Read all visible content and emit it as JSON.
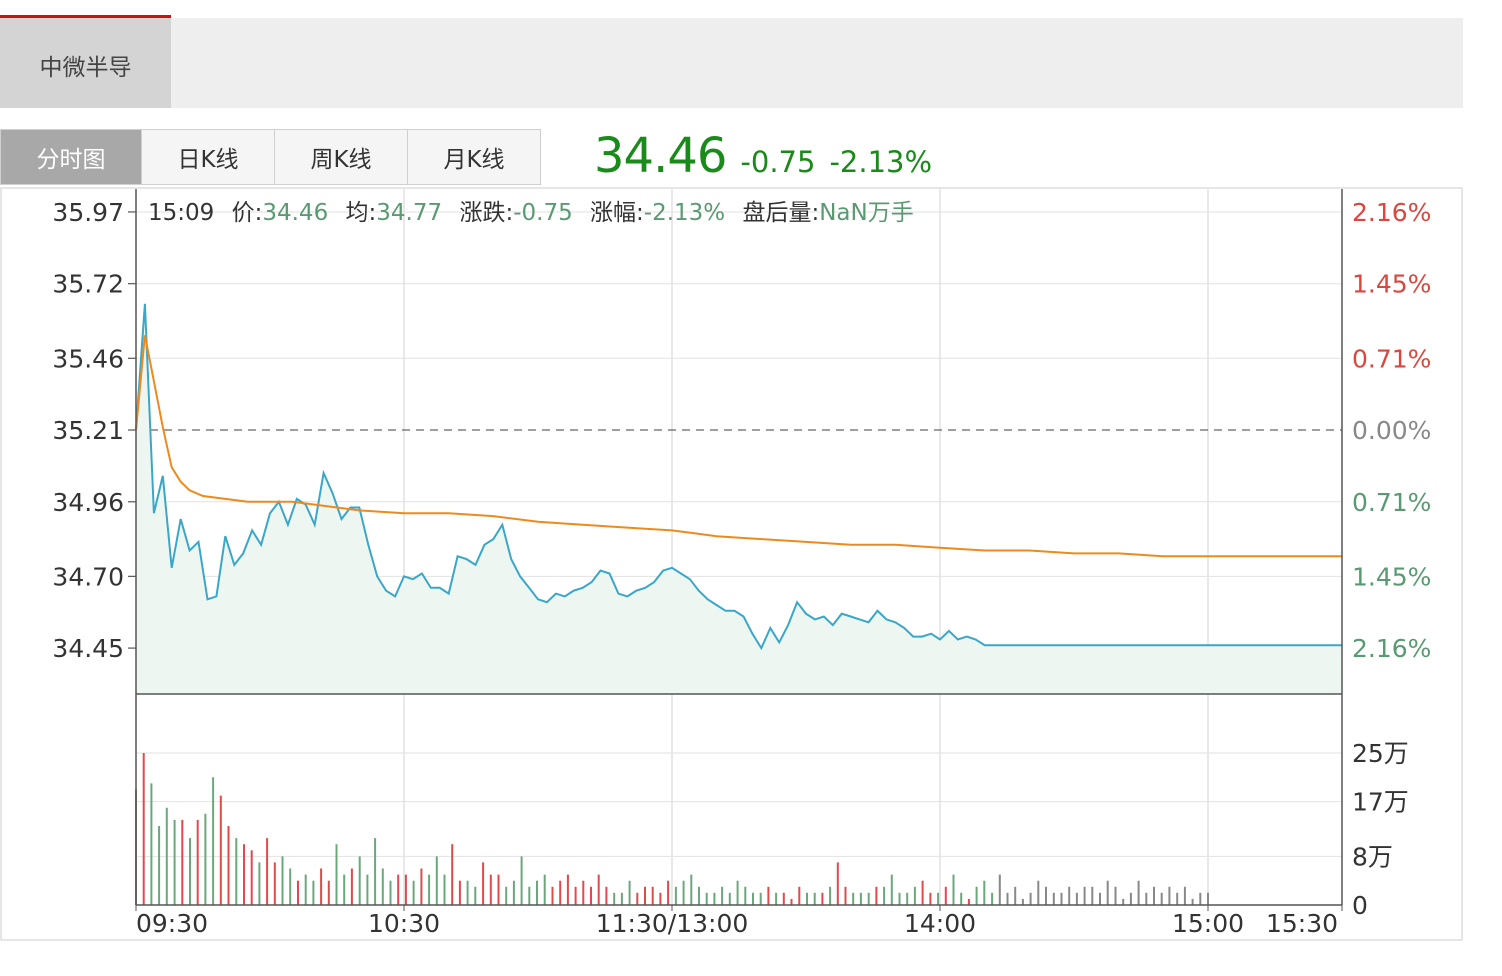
{
  "stock_name": "中微半导",
  "tabs": [
    "分时图",
    "日K线",
    "周K线",
    "月K线"
  ],
  "quote": {
    "price": "34.46",
    "change": "-0.75",
    "change_pct": "-2.13%"
  },
  "info_bar": {
    "time": "15:09",
    "price_label": "价:",
    "price": "34.46",
    "avg_label": "均:",
    "avg": "34.77",
    "change_label": "涨跌:",
    "change": "-0.75",
    "pct_label": "涨幅:",
    "pct": "-2.13%",
    "after_label": "盘后量:",
    "after": "NaN万手"
  },
  "colors": {
    "price_line": "#3aa7c8",
    "avg_line": "#ee8a1c",
    "area_fill": "#eef6f2",
    "up": "#e04a4a",
    "down": "#6aa87c",
    "neutral": "#888888",
    "quote_green": "#1a8a1a"
  },
  "chart_data": {
    "type": "line",
    "reference_price": 35.21,
    "price_ticks": [
      "35.97",
      "35.72",
      "35.46",
      "35.21",
      "34.96",
      "34.70",
      "34.45"
    ],
    "pct_ticks": [
      "2.16%",
      "1.45%",
      "0.71%",
      "0.00%",
      "0.71%",
      "1.45%",
      "2.16%"
    ],
    "ylim": [
      34.29,
      36.05
    ],
    "time_labels": [
      "09:30",
      "10:30",
      "11:30/13:00",
      "14:00",
      "15:00",
      "15:30"
    ],
    "volume_ticks": [
      "25万",
      "17万",
      "8万",
      "0"
    ],
    "volume_ylim": [
      0,
      25
    ],
    "series": [
      {
        "name": "价",
        "x": [
          0,
          2,
          4,
          6,
          8,
          10,
          12,
          14,
          16,
          18,
          20,
          22,
          24,
          26,
          28,
          30,
          32,
          34,
          36,
          38,
          40,
          42,
          44,
          46,
          48,
          50,
          52,
          54,
          56,
          58,
          60,
          62,
          64,
          66,
          68,
          70,
          72,
          74,
          76,
          78,
          80,
          82,
          84,
          86,
          88,
          90,
          92,
          94,
          96,
          98,
          100,
          102,
          104,
          106,
          108,
          110,
          112,
          114,
          116,
          118,
          120,
          122,
          124,
          126,
          128,
          130,
          132,
          134,
          136,
          138,
          140,
          142,
          144,
          146,
          148,
          150,
          152,
          154,
          156,
          158,
          160,
          162,
          164,
          166,
          168,
          170,
          172,
          174,
          176,
          178,
          180,
          182,
          184,
          186,
          188,
          190,
          192,
          194,
          196,
          198,
          200,
          202,
          204,
          206,
          208,
          210,
          212,
          214,
          216,
          218,
          220,
          222,
          224,
          226,
          228,
          230,
          232,
          234,
          236,
          238,
          240,
          242,
          244,
          246,
          248,
          250,
          252,
          254,
          256,
          258,
          260,
          262,
          264,
          266,
          268,
          270
        ],
        "values": [
          35.21,
          35.65,
          34.92,
          35.05,
          34.73,
          34.9,
          34.79,
          34.82,
          34.62,
          34.63,
          34.84,
          34.74,
          34.78,
          34.86,
          34.81,
          34.92,
          34.96,
          34.88,
          34.97,
          34.95,
          34.88,
          35.06,
          34.99,
          34.9,
          34.94,
          34.94,
          34.81,
          34.7,
          34.65,
          34.63,
          34.7,
          34.69,
          34.71,
          34.66,
          34.66,
          34.64,
          34.77,
          34.76,
          34.74,
          34.81,
          34.83,
          34.88,
          34.76,
          34.7,
          34.66,
          34.62,
          34.61,
          34.64,
          34.63,
          34.65,
          34.66,
          34.68,
          34.72,
          34.71,
          34.64,
          34.63,
          34.65,
          34.66,
          34.68,
          34.72,
          34.73,
          34.71,
          34.69,
          34.65,
          34.62,
          34.6,
          34.58,
          34.58,
          34.56,
          34.5,
          34.45,
          34.52,
          34.47,
          34.53,
          34.61,
          34.57,
          34.55,
          34.56,
          34.53,
          34.57,
          34.56,
          34.55,
          34.54,
          34.58,
          34.55,
          34.54,
          34.52,
          34.49,
          34.49,
          34.5,
          34.48,
          34.51,
          34.48,
          34.49,
          34.48,
          34.46,
          34.46,
          34.46,
          34.46,
          34.46,
          34.46,
          34.46,
          34.46,
          34.46,
          34.46,
          34.46,
          34.46,
          34.46,
          34.46,
          34.46,
          34.46,
          34.46,
          34.46,
          34.46,
          34.46,
          34.46,
          34.46,
          34.46,
          34.46,
          34.46,
          34.46,
          34.46,
          34.46,
          34.46,
          34.46,
          34.46,
          34.46,
          34.46,
          34.46,
          34.46,
          34.46,
          34.46,
          34.46,
          34.46,
          34.46,
          34.46
        ]
      },
      {
        "name": "均",
        "x": [
          0,
          2,
          4,
          6,
          8,
          10,
          12,
          15,
          20,
          25,
          30,
          35,
          40,
          45,
          50,
          60,
          70,
          80,
          90,
          100,
          110,
          120,
          125,
          130,
          140,
          150,
          160,
          170,
          180,
          190,
          200,
          210,
          220,
          230,
          240,
          245,
          250,
          260,
          270
        ],
        "values": [
          35.21,
          35.54,
          35.38,
          35.22,
          35.08,
          35.03,
          35.0,
          34.98,
          34.97,
          34.96,
          34.96,
          34.96,
          34.95,
          34.94,
          34.93,
          34.92,
          34.92,
          34.91,
          34.89,
          34.88,
          34.87,
          34.86,
          34.85,
          34.84,
          34.83,
          34.82,
          34.81,
          34.81,
          34.8,
          34.79,
          34.79,
          34.78,
          34.78,
          34.77,
          34.77,
          34.77,
          34.77,
          34.77,
          34.77
        ]
      }
    ],
    "volume": [
      19,
      25,
      20,
      13,
      16,
      14,
      14,
      11,
      14,
      15,
      21,
      18,
      13,
      11,
      10,
      9,
      7,
      11,
      7,
      8,
      6,
      4,
      5,
      4,
      6,
      4,
      10,
      5,
      6,
      8,
      5,
      11,
      6,
      4,
      5,
      5,
      4,
      6,
      5,
      8,
      5,
      10,
      4,
      4,
      3,
      7,
      5,
      5,
      3,
      4,
      8,
      3,
      4,
      5,
      3,
      4,
      5,
      3,
      4,
      3,
      5,
      3,
      2,
      2,
      4,
      2,
      3,
      3,
      2,
      4,
      3,
      4,
      5,
      3,
      2,
      2,
      3,
      2,
      4,
      3,
      2,
      2,
      3,
      2,
      2,
      1,
      3,
      2,
      2,
      2,
      3,
      7,
      3,
      2,
      2,
      2,
      3,
      3,
      5,
      2,
      2,
      3,
      4,
      2,
      2,
      3,
      5,
      2,
      1,
      3,
      4,
      2,
      5,
      2,
      3,
      1,
      2,
      4,
      3,
      2,
      2,
      3,
      2,
      3,
      3,
      2,
      4,
      3,
      1,
      2,
      4,
      2,
      3,
      2,
      3,
      2,
      3,
      1,
      2,
      2
    ]
  }
}
